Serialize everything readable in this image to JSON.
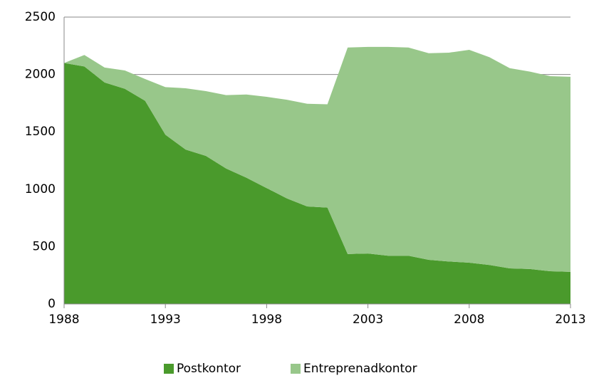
{
  "chart_data": {
    "type": "stacked_area",
    "x": [
      1988,
      1989,
      1990,
      1991,
      1992,
      1993,
      1994,
      1995,
      1996,
      1997,
      1998,
      1999,
      2000,
      2001,
      2002,
      2003,
      2004,
      2005,
      2006,
      2007,
      2008,
      2009,
      2010,
      2011,
      2012,
      2013
    ],
    "series": [
      {
        "name": "Postkontor",
        "color": "#4a9a2c",
        "values": [
          2100,
          2070,
          1930,
          1875,
          1770,
          1475,
          1345,
          1290,
          1180,
          1100,
          1010,
          920,
          850,
          840,
          435,
          440,
          420,
          420,
          385,
          370,
          360,
          340,
          310,
          305,
          285,
          280
        ]
      },
      {
        "name": "Entreprenadkontor",
        "color": "#98c78a",
        "values": [
          0,
          100,
          130,
          160,
          190,
          415,
          535,
          565,
          640,
          725,
          795,
          860,
          895,
          900,
          1800,
          1800,
          1820,
          1815,
          1800,
          1820,
          1855,
          1810,
          1745,
          1720,
          1700,
          1700
        ]
      }
    ],
    "xlim": [
      1988,
      2013
    ],
    "xticks": [
      1988,
      1993,
      1998,
      2003,
      2008,
      2013
    ],
    "ylim": [
      0,
      2500
    ],
    "yticks": [
      0,
      500,
      1000,
      1500,
      2000,
      2500
    ],
    "grid": true,
    "legend": "bottom"
  }
}
